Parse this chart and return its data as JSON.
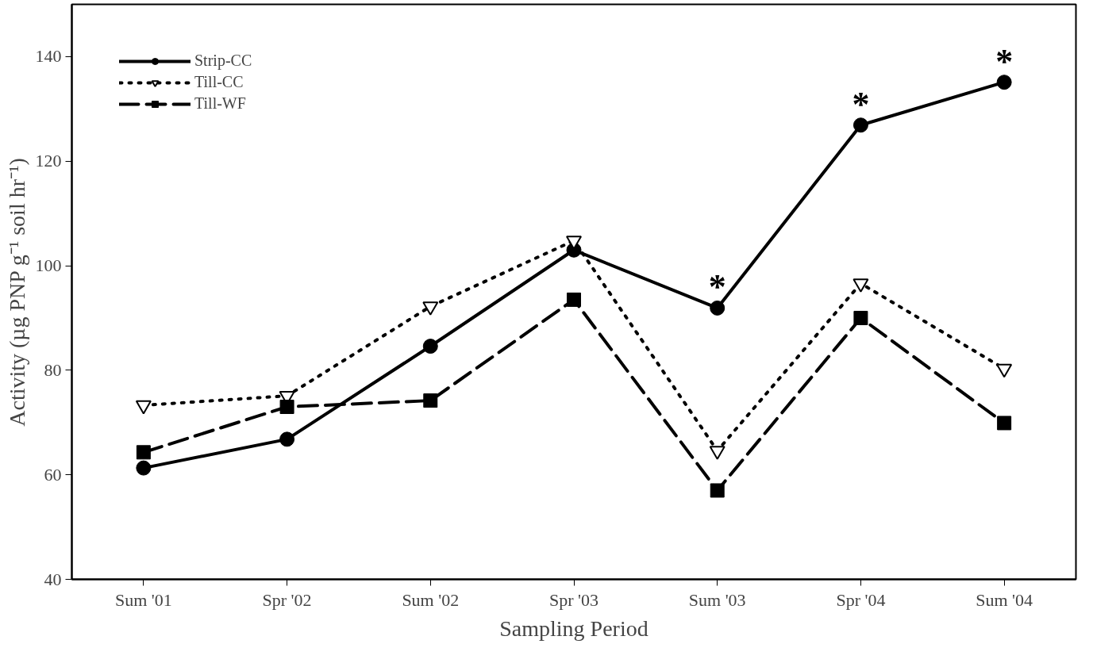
{
  "chart_data": {
    "type": "line",
    "xlabel": "Sampling Period",
    "ylabel": "Activity (µg PNP g⁻¹ soil hr⁻¹)",
    "categories": [
      "Sum '01",
      "Spr '02",
      "Sum '02",
      "Spr '03",
      "Sum '03",
      "Spr '04",
      "Sum '04"
    ],
    "ylim": [
      40,
      150
    ],
    "yticks": [
      40,
      60,
      80,
      100,
      120,
      140
    ],
    "grid": false,
    "legend": "top left",
    "series": [
      {
        "name": "Strip-CC",
        "color": "#000000",
        "marker": "circle",
        "line_style": "solid",
        "values": [
          61.3,
          66.8,
          84.6,
          103.0,
          91.9,
          126.9,
          135.1
        ]
      },
      {
        "name": "Till-CC",
        "color": "#000000",
        "marker": "triangle",
        "line_style": "dotted",
        "values": [
          73.3,
          75.1,
          92.2,
          104.8,
          64.6,
          96.6,
          80.3
        ]
      },
      {
        "name": "Till-WF",
        "color": "#000000",
        "marker": "square",
        "line_style": "dashed",
        "values": [
          64.3,
          73.0,
          74.2,
          93.5,
          57.0,
          90.0,
          69.9
        ]
      }
    ],
    "annotations": [
      {
        "text": "*",
        "x": "Sum '03",
        "y": 91.9
      },
      {
        "text": "*",
        "x": "Spr '04",
        "y": 126.9
      },
      {
        "text": "*",
        "x": "Sum '04",
        "y": 135.1
      }
    ]
  }
}
